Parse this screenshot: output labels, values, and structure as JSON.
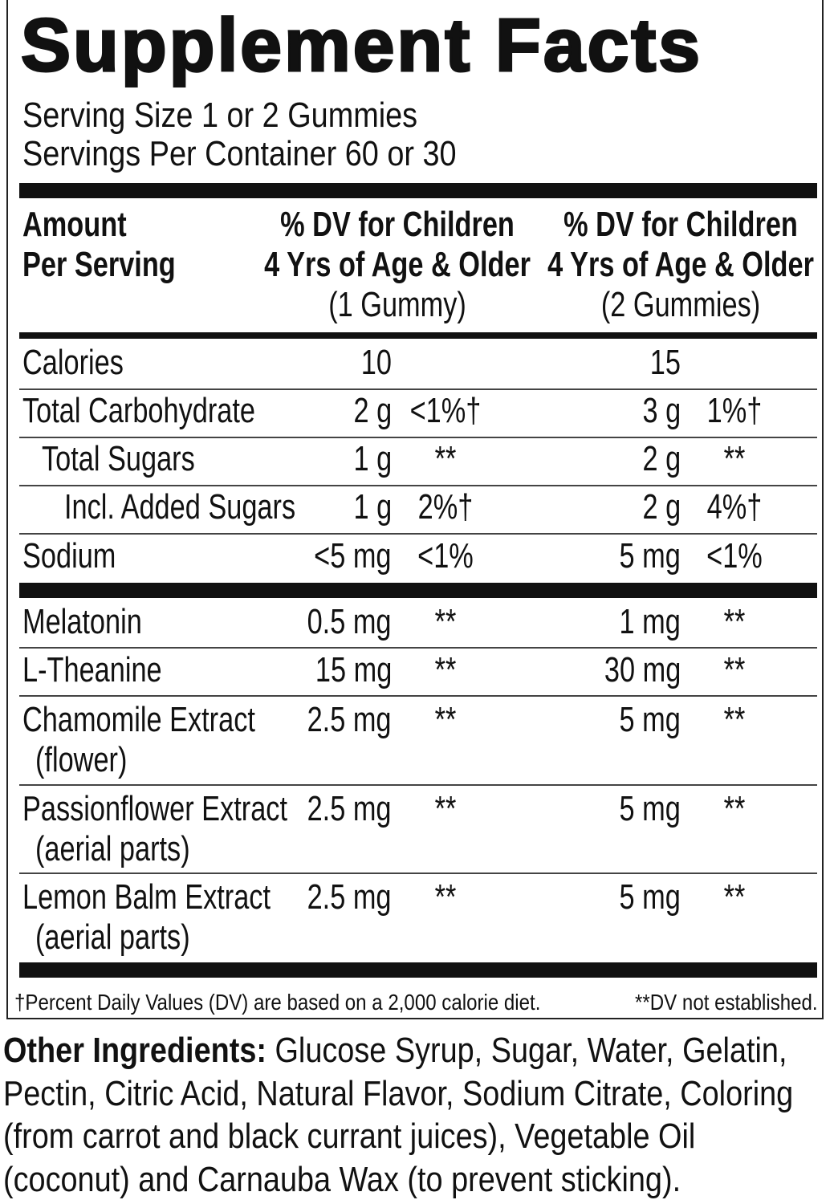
{
  "title": "Supplement Facts",
  "serving_size": "Serving Size 1 or 2 Gummies",
  "servings_per_container": "Servings Per Container 60 or 30",
  "header": {
    "amount": [
      "Amount",
      "Per Serving"
    ],
    "column_1": [
      "% DV for Children",
      "4 Yrs of Age & Older",
      "(1 Gummy)"
    ],
    "column_2": [
      "% DV for Children",
      "4 Yrs of Age & Older",
      "(2 Gummies)"
    ]
  },
  "rows": [
    {
      "name": "Calories",
      "amount_1": "10",
      "amount_2": "15"
    },
    {
      "name": "Total Carbohydrate",
      "amount_1": "2 g",
      "dv_1": "<1%†",
      "amount_2": "3 g",
      "dv_2": "1%†"
    },
    {
      "name": "Total Sugars",
      "amount_1": "1 g",
      "dv_1": "**",
      "amount_2": "2 g",
      "dv_2": "**"
    },
    {
      "name": "Incl. Added Sugars",
      "amount_1": "1 g",
      "dv_1": "2%†",
      "amount_2": "2 g",
      "dv_2": "4%†"
    },
    {
      "name": "Sodium",
      "amount_1": "<5 mg",
      "dv_1": "<1%",
      "amount_2": "5 mg",
      "dv_2": "<1%"
    },
    {
      "name": "Melatonin",
      "amount_1": "0.5 mg",
      "dv_1": "**",
      "amount_2": "1 mg",
      "dv_2": "**"
    },
    {
      "name": "L-Theanine",
      "amount_1": "15 mg",
      "dv_1": "**",
      "amount_2": "30 mg",
      "dv_2": "**"
    },
    {
      "name": "Chamomile Extract",
      "part": "(flower)",
      "amount_1": "2.5 mg",
      "dv_1": "**",
      "amount_2": "5 mg",
      "dv_2": "**"
    },
    {
      "name": "Passionflower Extract",
      "part": "(aerial parts)",
      "amount_1": "2.5 mg",
      "dv_1": "**",
      "amount_2": "5 mg",
      "dv_2": "**"
    },
    {
      "name": "Lemon Balm Extract",
      "part": "(aerial parts)",
      "amount_1": "2.5 mg",
      "dv_1": "**",
      "amount_2": "5 mg",
      "dv_2": "**"
    }
  ],
  "footnote_dv": "†Percent Daily Values (DV) are based on a 2,000 calorie diet.",
  "footnote_na": "**DV not established.",
  "other_ingredients": {
    "label": "Other Ingredients:",
    "text": "Glucose Syrup, Sugar, Water, Gelatin, Pectin, Citric Acid, Natural Flavor, Sodium Citrate, Coloring (from carrot and black currant juices), Vegetable Oil (coconut) and Carnauba Wax (to prevent sticking)."
  }
}
